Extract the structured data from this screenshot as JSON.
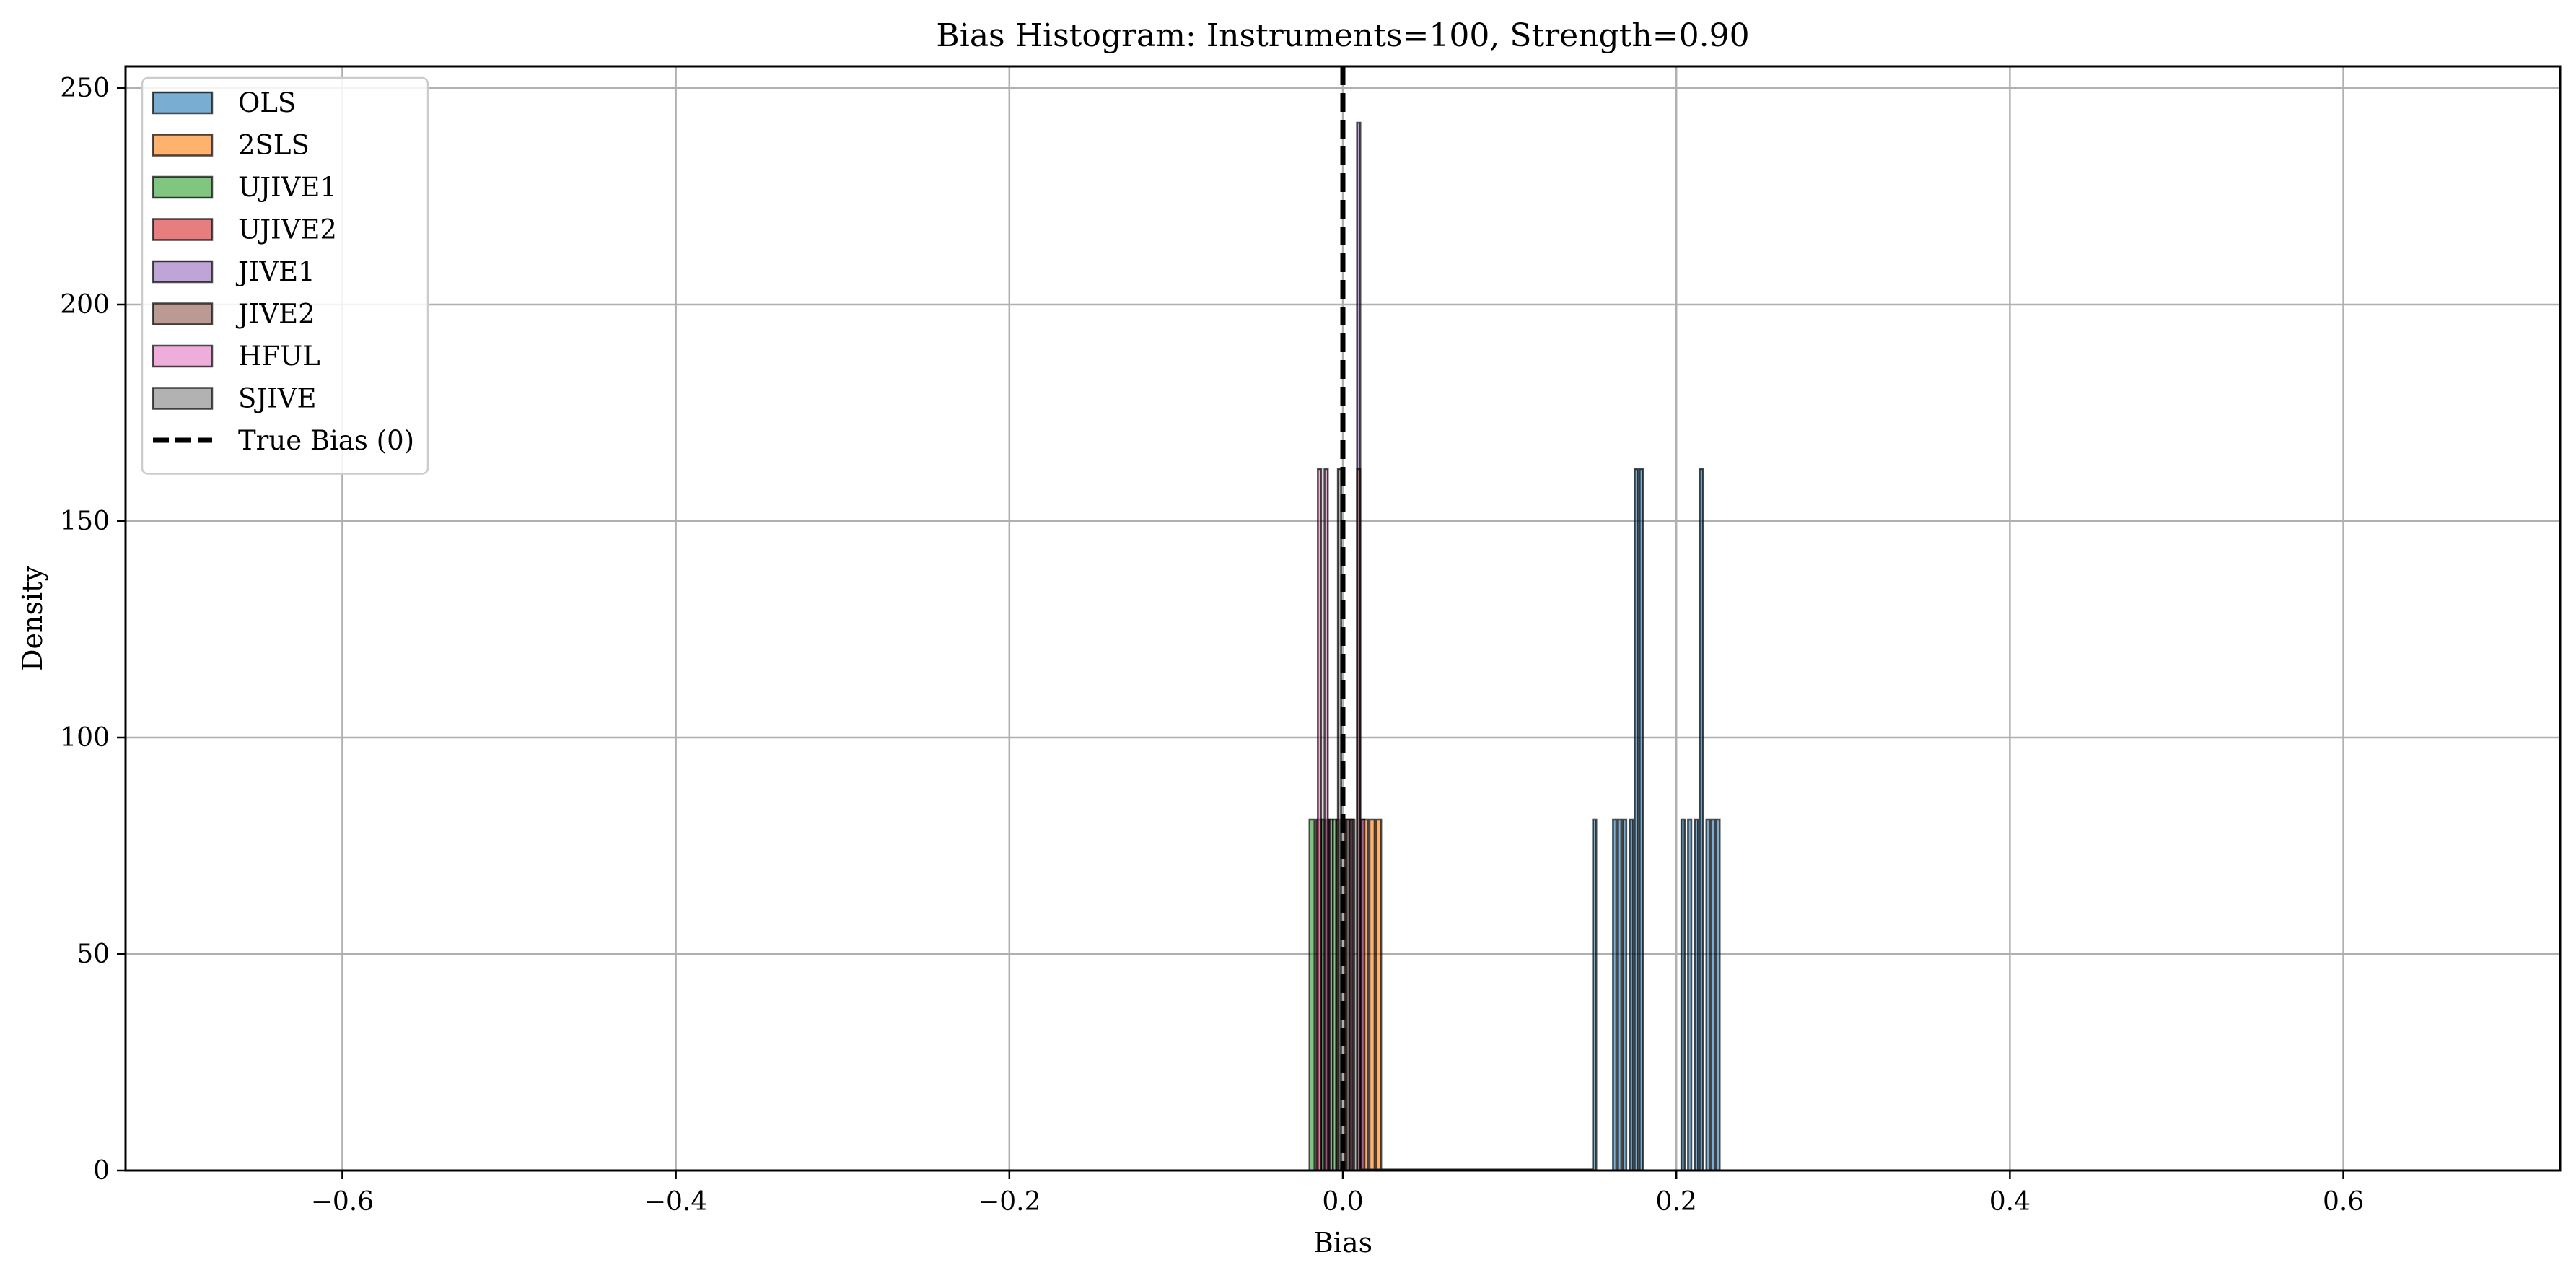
{
  "chart_data": {
    "type": "bar",
    "title": "Bias Histogram: Instruments=100, Strength=0.90",
    "xlabel": "Bias",
    "ylabel": "Density",
    "xlim": [
      -0.73,
      0.73
    ],
    "ylim": [
      0,
      255
    ],
    "grid": true,
    "legend_position": "top-left",
    "xticks": [
      -0.6,
      -0.4,
      -0.2,
      0.0,
      0.2,
      0.4,
      0.6
    ],
    "xtick_labels": [
      "−0.6",
      "−0.4",
      "−0.2",
      "0.0",
      "0.2",
      "0.4",
      "0.6"
    ],
    "yticks": [
      0,
      50,
      100,
      150,
      200,
      250
    ],
    "ytick_labels": [
      "0",
      "50",
      "100",
      "150",
      "200",
      "250"
    ],
    "reference_line": {
      "name": "True Bias (0)",
      "x": 0,
      "style": "dashed",
      "color": "#000000"
    },
    "series": [
      {
        "name": "OLS",
        "color": "#1f77b4",
        "bins": [
          [
            0.15,
            0.152,
            81
          ],
          [
            0.162,
            0.164,
            81
          ],
          [
            0.165,
            0.167,
            81
          ],
          [
            0.168,
            0.17,
            81
          ],
          [
            0.172,
            0.174,
            81
          ],
          [
            0.175,
            0.177,
            162
          ],
          [
            0.178,
            0.18,
            162
          ],
          [
            0.203,
            0.205,
            81
          ],
          [
            0.207,
            0.209,
            81
          ],
          [
            0.211,
            0.213,
            81
          ],
          [
            0.214,
            0.216,
            162
          ],
          [
            0.218,
            0.22,
            81
          ],
          [
            0.221,
            0.223,
            81
          ],
          [
            0.224,
            0.226,
            81
          ]
        ]
      },
      {
        "name": "2SLS",
        "color": "#ff7f0e",
        "bins": [
          [
            0.012,
            0.015,
            81
          ],
          [
            0.016,
            0.019,
            81
          ],
          [
            0.02,
            0.023,
            81
          ]
        ]
      },
      {
        "name": "UJIVE1",
        "color": "#2ca02c",
        "bins": [
          [
            -0.02,
            -0.017,
            81
          ],
          [
            -0.013,
            -0.011,
            81
          ],
          [
            -0.006,
            -0.004,
            81
          ]
        ]
      },
      {
        "name": "UJIVE2",
        "color": "#d62728",
        "bins": [
          [
            -0.016,
            -0.013,
            81
          ],
          [
            -0.01,
            -0.008,
            81
          ],
          [
            0.001,
            0.003,
            81
          ]
        ]
      },
      {
        "name": "JIVE1",
        "color": "#9467bd",
        "bins": [
          [
            0.005,
            0.007,
            81
          ],
          [
            0.0085,
            0.0105,
            242
          ]
        ]
      },
      {
        "name": "JIVE2",
        "color": "#8c564b",
        "bins": [
          [
            -0.004,
            -0.002,
            81
          ],
          [
            0.004,
            0.006,
            81
          ],
          [
            0.0085,
            0.0105,
            162
          ]
        ]
      },
      {
        "name": "HFUL",
        "color": "#e377c2",
        "bins": [
          [
            -0.015,
            -0.013,
            162
          ],
          [
            -0.011,
            -0.009,
            162
          ],
          [
            0.011,
            0.013,
            81
          ]
        ]
      },
      {
        "name": "SJIVE",
        "color": "#7f7f7f",
        "bins": [
          [
            -0.003,
            -0.001,
            162
          ],
          [
            0.002,
            0.004,
            81
          ],
          [
            -0.008,
            -0.006,
            81
          ]
        ]
      }
    ]
  }
}
